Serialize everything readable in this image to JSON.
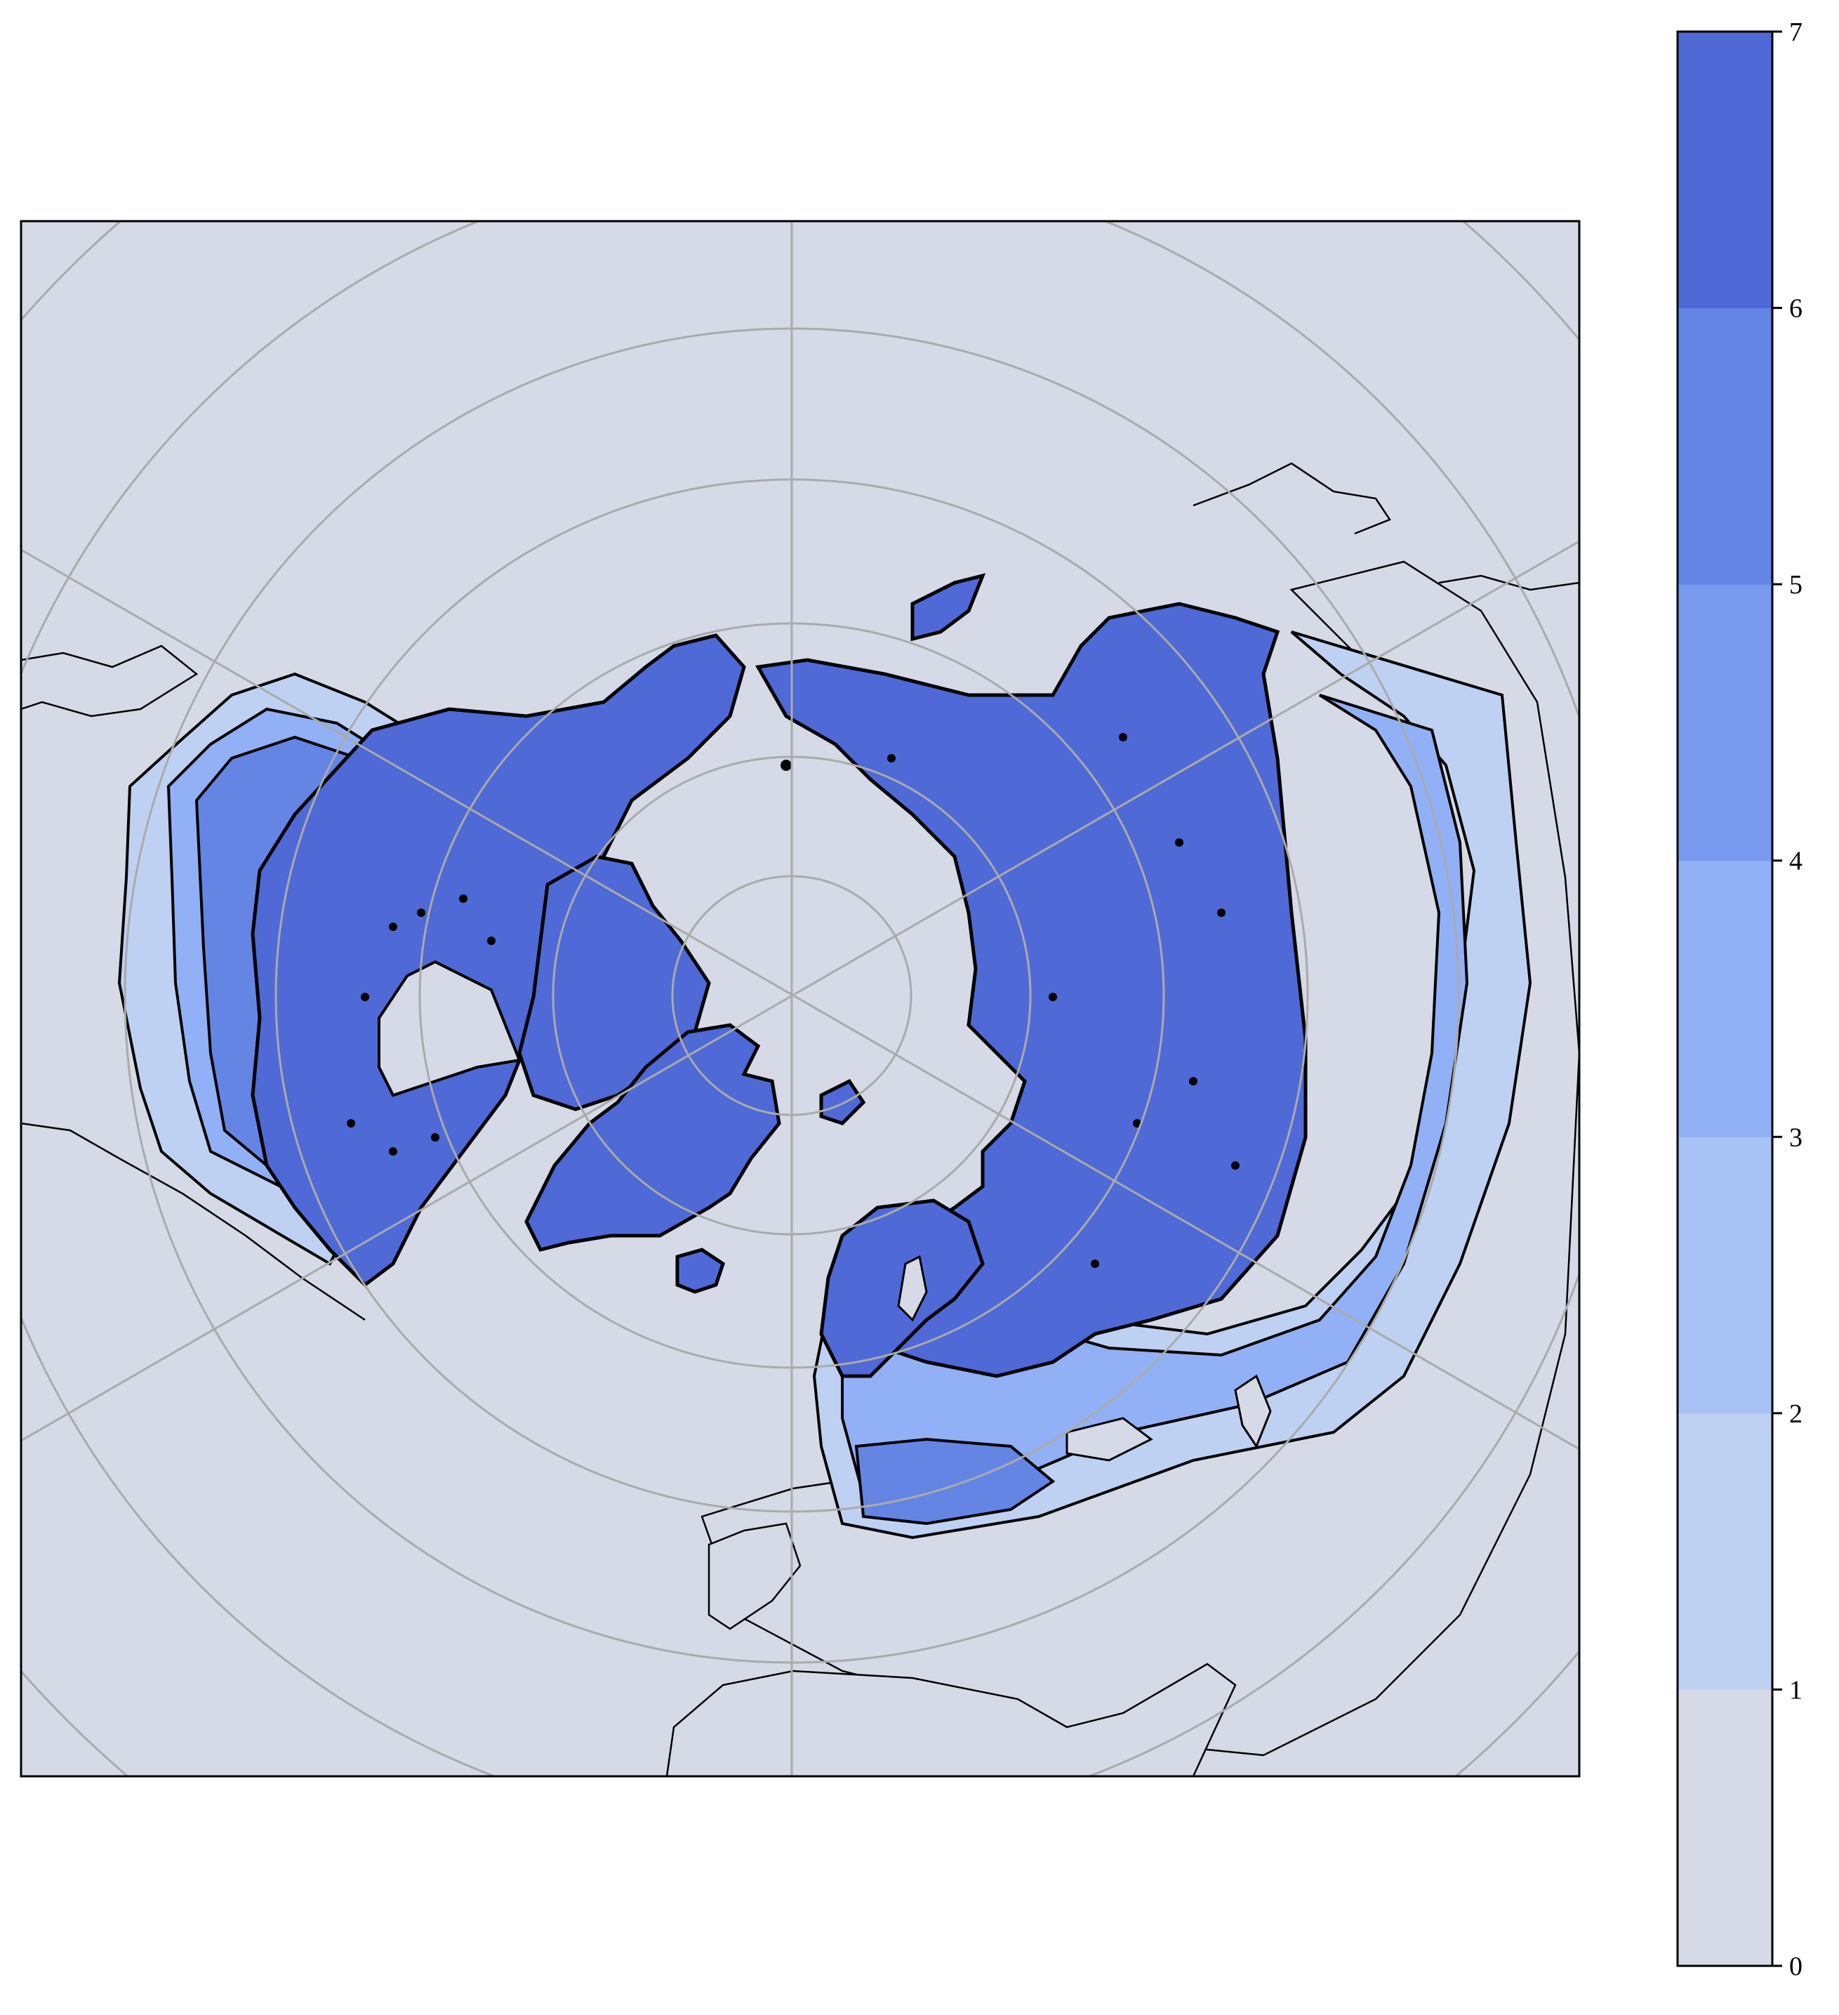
{
  "map": {
    "projection": "north-polar-stereographic",
    "ocean_color": "#d5dae6",
    "grid_color": "#aaaaaa",
    "coastline_color": "#000000",
    "land_fill_class": 7
  },
  "colorbar": {
    "levels": [
      0,
      1,
      2,
      3,
      4,
      5,
      6,
      7
    ],
    "tick_labels": [
      "0",
      "1",
      "2",
      "3",
      "4",
      "5",
      "6",
      "7"
    ],
    "band_colors": [
      "#d5dae6",
      "#bfd1f2",
      "#a8c2f6",
      "#92b0f6",
      "#7a9af0",
      "#6585e4",
      "#4f69d6"
    ]
  }
}
